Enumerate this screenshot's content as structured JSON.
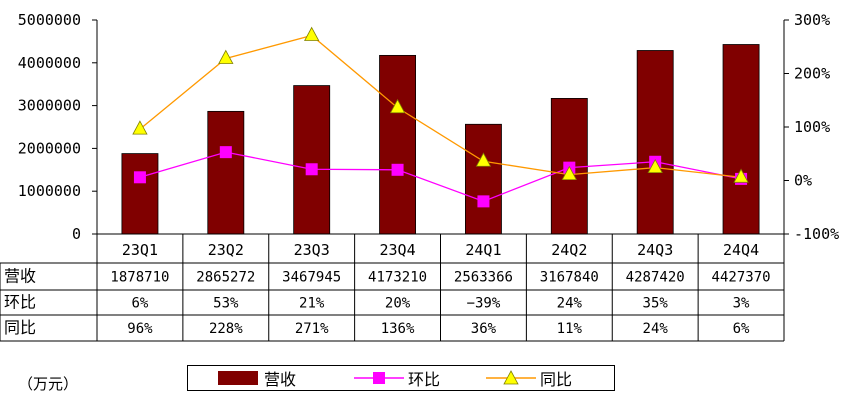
{
  "chart_data": {
    "type": "bar+line",
    "categories": [
      "23Q1",
      "23Q2",
      "23Q3",
      "23Q4",
      "24Q1",
      "24Q2",
      "24Q3",
      "24Q4"
    ],
    "series": [
      {
        "name": "营收",
        "type": "bar",
        "axis": "left",
        "color": "#800000",
        "values": [
          1878710,
          2865272,
          3467945,
          4173210,
          2563366,
          3167840,
          4287420,
          4427370
        ],
        "labels": [
          "1878710",
          "2865272",
          "3467945",
          "4173210",
          "2563366",
          "3167840",
          "4287420",
          "4427370"
        ]
      },
      {
        "name": "环比",
        "type": "line",
        "axis": "right",
        "color": "#ff00ff",
        "marker": "square",
        "values": [
          6,
          53,
          21,
          20,
          -39,
          24,
          35,
          3
        ],
        "labels": [
          "6%",
          "53%",
          "21%",
          "20%",
          "−39%",
          "24%",
          "35%",
          "3%"
        ]
      },
      {
        "name": "同比",
        "type": "line",
        "axis": "right",
        "color": "#ff9900",
        "marker": "triangle",
        "marker_color": "#ffff00",
        "values": [
          96,
          228,
          271,
          136,
          36,
          11,
          24,
          6
        ],
        "labels": [
          "96%",
          "228%",
          "271%",
          "136%",
          "36%",
          "11%",
          "24%",
          "6%"
        ]
      }
    ],
    "left_axis": {
      "ylim": [
        0,
        5000000
      ],
      "ticks": [
        "0",
        "1000000",
        "2000000",
        "3000000",
        "4000000",
        "5000000"
      ]
    },
    "right_axis": {
      "ylim": [
        -100,
        300
      ],
      "ticks": [
        "-100%",
        "0%",
        "100%",
        "200%",
        "300%"
      ]
    },
    "grid": false,
    "unit": "（万元）",
    "legend": {
      "position": "bottom",
      "entries": [
        "营收",
        "环比",
        "同比"
      ]
    }
  }
}
